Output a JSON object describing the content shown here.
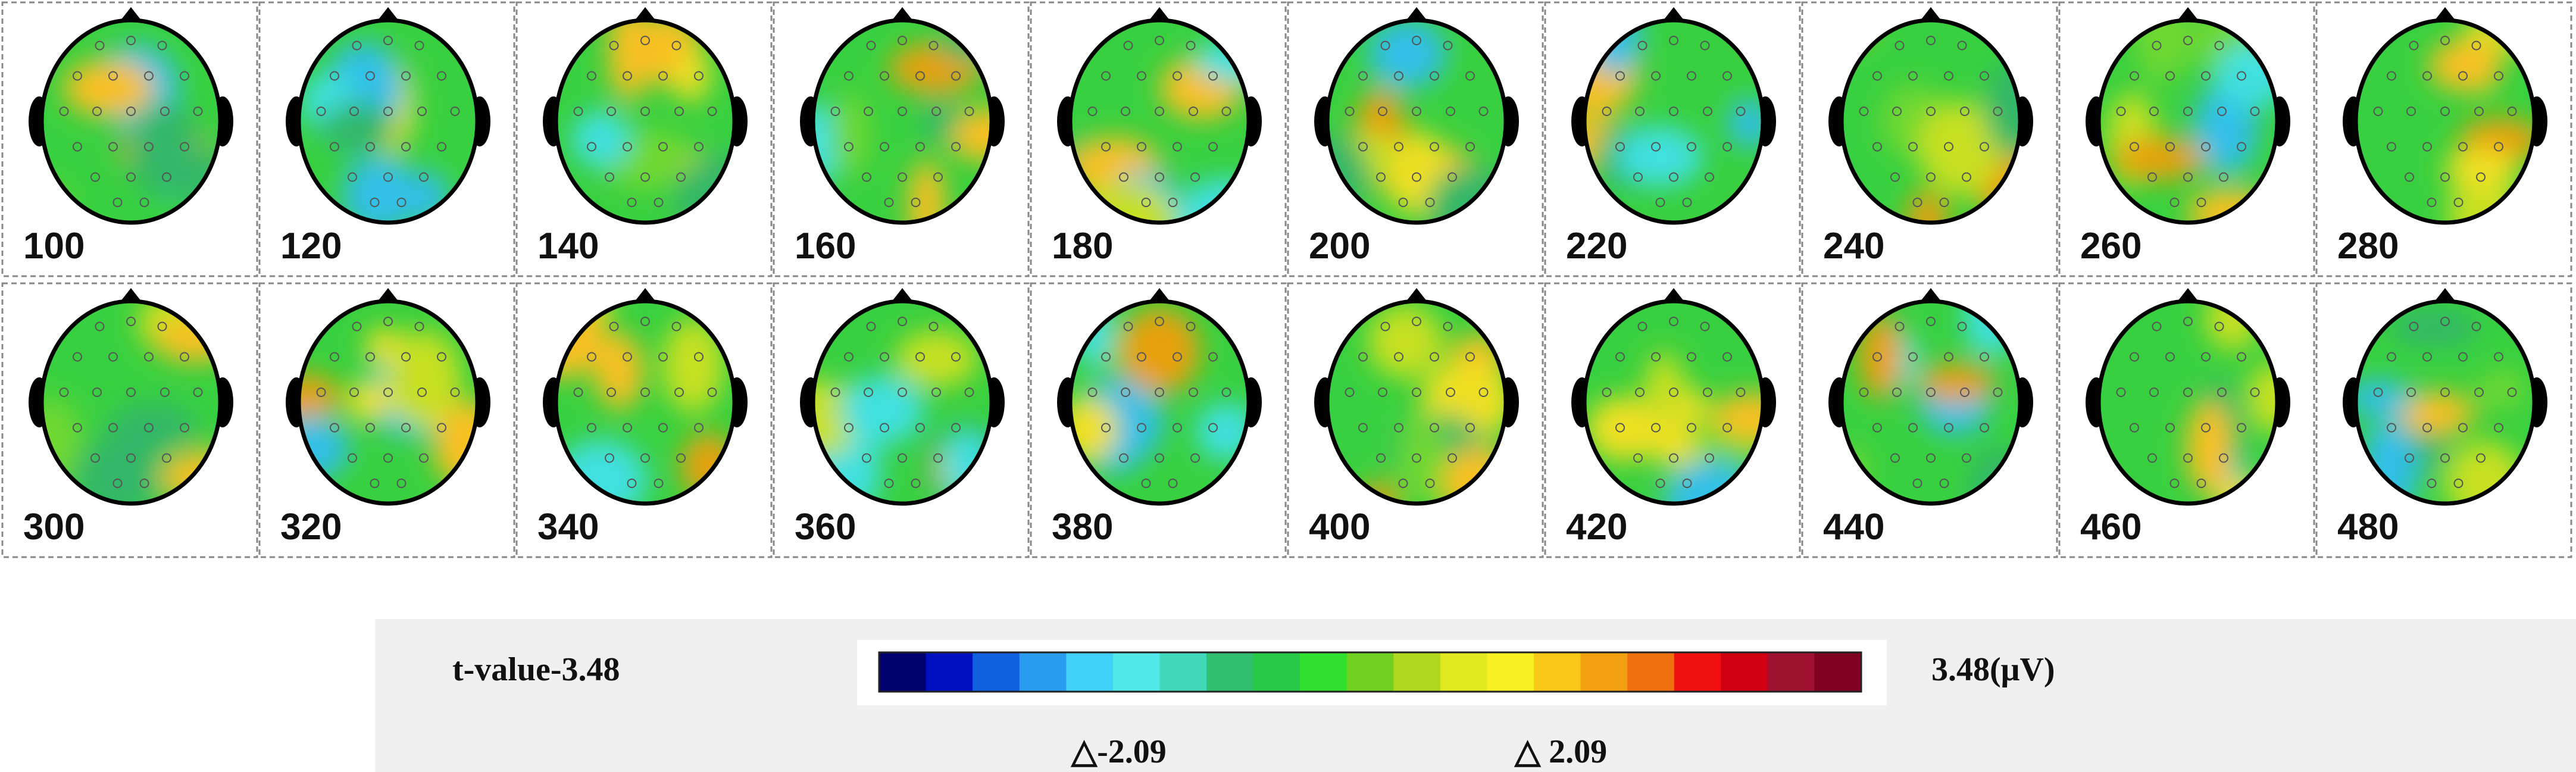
{
  "panels": [
    {
      "label": "100"
    },
    {
      "label": "120"
    },
    {
      "label": "140"
    },
    {
      "label": "160"
    },
    {
      "label": "180"
    },
    {
      "label": "200"
    },
    {
      "label": "220"
    },
    {
      "label": "240"
    },
    {
      "label": "260"
    },
    {
      "label": "280"
    },
    {
      "label": "300"
    },
    {
      "label": "320"
    },
    {
      "label": "340"
    },
    {
      "label": "360"
    },
    {
      "label": "380"
    },
    {
      "label": "400"
    },
    {
      "label": "420"
    },
    {
      "label": "440"
    },
    {
      "label": "460"
    },
    {
      "label": "480"
    }
  ],
  "colorbar": {
    "min_label": "t-value-3.48",
    "max_label": "3.48(μV)",
    "markers": [
      "△-2.09",
      "△ 2.09"
    ]
  }
}
